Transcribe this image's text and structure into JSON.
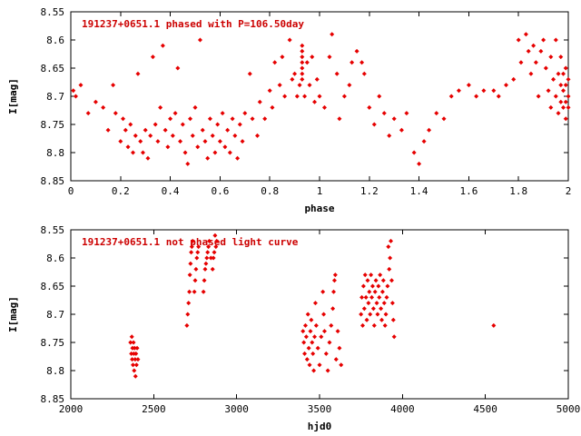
{
  "page": {
    "background": "#ffffff",
    "axis_color": "#000000"
  },
  "chart_data": [
    {
      "type": "scatter",
      "title": "191237+0651.1 phased with P=106.50day",
      "title_color": "#cc0000",
      "xlabel": "phase",
      "ylabel": "I[mag]",
      "xlim": [
        0,
        2
      ],
      "ylim": [
        8.85,
        8.55
      ],
      "y_axis_inverted": true,
      "grid": false,
      "legend": "none",
      "marker": "diamond",
      "marker_color": "#e60000",
      "xticks": {
        "values": [
          0,
          0.2,
          0.4,
          0.6,
          0.8,
          1,
          1.2,
          1.4,
          1.6,
          1.8,
          2
        ],
        "labels": [
          "0",
          "0.2",
          "0.4",
          "0.6",
          "0.8",
          "1",
          "1.2",
          "1.4",
          "1.6",
          "1.8",
          "2"
        ]
      },
      "yticks": {
        "values": [
          8.55,
          8.6,
          8.65,
          8.7,
          8.75,
          8.8,
          8.85
        ],
        "labels": [
          "8.55",
          "8.6",
          "8.65",
          "8.7",
          "8.75",
          "8.8",
          "8.85"
        ]
      },
      "points": [
        [
          0.01,
          8.69
        ],
        [
          0.02,
          8.7
        ],
        [
          0.04,
          8.68
        ],
        [
          0.07,
          8.73
        ],
        [
          0.1,
          8.71
        ],
        [
          0.13,
          8.72
        ],
        [
          0.15,
          8.76
        ],
        [
          0.17,
          8.68
        ],
        [
          0.18,
          8.73
        ],
        [
          0.2,
          8.78
        ],
        [
          0.21,
          8.74
        ],
        [
          0.22,
          8.76
        ],
        [
          0.23,
          8.79
        ],
        [
          0.24,
          8.75
        ],
        [
          0.25,
          8.8
        ],
        [
          0.26,
          8.77
        ],
        [
          0.27,
          8.66
        ],
        [
          0.28,
          8.78
        ],
        [
          0.29,
          8.8
        ],
        [
          0.3,
          8.76
        ],
        [
          0.31,
          8.81
        ],
        [
          0.32,
          8.77
        ],
        [
          0.33,
          8.63
        ],
        [
          0.34,
          8.75
        ],
        [
          0.35,
          8.78
        ],
        [
          0.36,
          8.72
        ],
        [
          0.37,
          8.61
        ],
        [
          0.38,
          8.76
        ],
        [
          0.39,
          8.79
        ],
        [
          0.4,
          8.74
        ],
        [
          0.41,
          8.77
        ],
        [
          0.42,
          8.73
        ],
        [
          0.43,
          8.65
        ],
        [
          0.44,
          8.78
        ],
        [
          0.45,
          8.75
        ],
        [
          0.46,
          8.8
        ],
        [
          0.47,
          8.82
        ],
        [
          0.48,
          8.74
        ],
        [
          0.49,
          8.77
        ],
        [
          0.5,
          8.72
        ],
        [
          0.51,
          8.79
        ],
        [
          0.52,
          8.6
        ],
        [
          0.53,
          8.76
        ],
        [
          0.54,
          8.78
        ],
        [
          0.55,
          8.81
        ],
        [
          0.56,
          8.74
        ],
        [
          0.57,
          8.77
        ],
        [
          0.58,
          8.8
        ],
        [
          0.59,
          8.75
        ],
        [
          0.6,
          8.78
        ],
        [
          0.61,
          8.73
        ],
        [
          0.62,
          8.79
        ],
        [
          0.63,
          8.76
        ],
        [
          0.64,
          8.8
        ],
        [
          0.65,
          8.74
        ],
        [
          0.66,
          8.77
        ],
        [
          0.67,
          8.81
        ],
        [
          0.68,
          8.75
        ],
        [
          0.69,
          8.78
        ],
        [
          0.7,
          8.73
        ],
        [
          0.72,
          8.66
        ],
        [
          0.73,
          8.74
        ],
        [
          0.75,
          8.77
        ],
        [
          0.76,
          8.71
        ],
        [
          0.78,
          8.74
        ],
        [
          0.8,
          8.69
        ],
        [
          0.81,
          8.72
        ],
        [
          0.82,
          8.64
        ],
        [
          0.84,
          8.68
        ],
        [
          0.85,
          8.63
        ],
        [
          0.86,
          8.7
        ],
        [
          0.88,
          8.6
        ],
        [
          0.89,
          8.67
        ],
        [
          0.9,
          8.66
        ],
        [
          0.91,
          8.7
        ],
        [
          0.92,
          8.68
        ],
        [
          0.93,
          8.61
        ],
        [
          0.93,
          8.62
        ],
        [
          0.93,
          8.63
        ],
        [
          0.93,
          8.64
        ],
        [
          0.93,
          8.65
        ],
        [
          0.93,
          8.66
        ],
        [
          0.93,
          8.67
        ],
        [
          0.94,
          8.7
        ],
        [
          0.95,
          8.64
        ],
        [
          0.96,
          8.68
        ],
        [
          0.97,
          8.63
        ],
        [
          0.98,
          8.71
        ],
        [
          0.99,
          8.67
        ],
        [
          1.0,
          8.7
        ],
        [
          1.02,
          8.72
        ],
        [
          1.04,
          8.63
        ],
        [
          1.05,
          8.59
        ],
        [
          1.07,
          8.66
        ],
        [
          1.08,
          8.74
        ],
        [
          1.1,
          8.7
        ],
        [
          1.12,
          8.68
        ],
        [
          1.13,
          8.64
        ],
        [
          1.15,
          8.62
        ],
        [
          1.17,
          8.64
        ],
        [
          1.18,
          8.66
        ],
        [
          1.2,
          8.72
        ],
        [
          1.22,
          8.75
        ],
        [
          1.24,
          8.7
        ],
        [
          1.26,
          8.73
        ],
        [
          1.28,
          8.77
        ],
        [
          1.3,
          8.74
        ],
        [
          1.33,
          8.76
        ],
        [
          1.35,
          8.73
        ],
        [
          1.38,
          8.8
        ],
        [
          1.4,
          8.82
        ],
        [
          1.42,
          8.78
        ],
        [
          1.44,
          8.76
        ],
        [
          1.47,
          8.73
        ],
        [
          1.5,
          8.74
        ],
        [
          1.53,
          8.7
        ],
        [
          1.56,
          8.69
        ],
        [
          1.6,
          8.68
        ],
        [
          1.63,
          8.7
        ],
        [
          1.66,
          8.69
        ],
        [
          1.7,
          8.69
        ],
        [
          1.72,
          8.7
        ],
        [
          1.75,
          8.68
        ],
        [
          1.78,
          8.67
        ],
        [
          1.8,
          8.6
        ],
        [
          1.81,
          8.64
        ],
        [
          1.83,
          8.59
        ],
        [
          1.84,
          8.62
        ],
        [
          1.85,
          8.66
        ],
        [
          1.86,
          8.61
        ],
        [
          1.87,
          8.64
        ],
        [
          1.88,
          8.7
        ],
        [
          1.89,
          8.62
        ],
        [
          1.9,
          8.6
        ],
        [
          1.91,
          8.65
        ],
        [
          1.92,
          8.69
        ],
        [
          1.93,
          8.63
        ],
        [
          1.93,
          8.72
        ],
        [
          1.94,
          8.67
        ],
        [
          1.95,
          8.6
        ],
        [
          1.95,
          8.7
        ],
        [
          1.96,
          8.66
        ],
        [
          1.96,
          8.73
        ],
        [
          1.97,
          8.63
        ],
        [
          1.97,
          8.68
        ],
        [
          1.97,
          8.71
        ],
        [
          1.98,
          8.66
        ],
        [
          1.98,
          8.69
        ],
        [
          1.98,
          8.72
        ],
        [
          1.99,
          8.65
        ],
        [
          1.99,
          8.68
        ],
        [
          1.99,
          8.71
        ],
        [
          1.99,
          8.74
        ],
        [
          2.0,
          8.67
        ],
        [
          2.0,
          8.7
        ],
        [
          2.0,
          8.72
        ]
      ]
    },
    {
      "type": "scatter",
      "title": "191237+0651.1 not phased light curve",
      "title_color": "#cc0000",
      "xlabel": "hjd0",
      "ylabel": "I[mag]",
      "xlim": [
        2000,
        5000
      ],
      "ylim": [
        8.85,
        8.55
      ],
      "y_axis_inverted": true,
      "grid": false,
      "legend": "none",
      "marker": "diamond",
      "marker_color": "#e60000",
      "xticks": {
        "values": [
          2000,
          2500,
          3000,
          3500,
          4000,
          4500,
          5000
        ],
        "labels": [
          "2000",
          "2500",
          "3000",
          "3500",
          "4000",
          "4500",
          "5000"
        ]
      },
      "yticks": {
        "values": [
          8.55,
          8.6,
          8.65,
          8.7,
          8.75,
          8.8,
          8.85
        ],
        "labels": [
          "8.55",
          "8.6",
          "8.65",
          "8.7",
          "8.75",
          "8.8",
          "8.85"
        ]
      },
      "points": [
        [
          2360,
          8.75
        ],
        [
          2365,
          8.77
        ],
        [
          2368,
          8.74
        ],
        [
          2370,
          8.78
        ],
        [
          2372,
          8.76
        ],
        [
          2375,
          8.79
        ],
        [
          2378,
          8.75
        ],
        [
          2380,
          8.77
        ],
        [
          2382,
          8.8
        ],
        [
          2385,
          8.76
        ],
        [
          2388,
          8.78
        ],
        [
          2390,
          8.81
        ],
        [
          2393,
          8.77
        ],
        [
          2396,
          8.79
        ],
        [
          2400,
          8.76
        ],
        [
          2405,
          8.78
        ],
        [
          2700,
          8.72
        ],
        [
          2705,
          8.7
        ],
        [
          2710,
          8.68
        ],
        [
          2715,
          8.66
        ],
        [
          2718,
          8.63
        ],
        [
          2722,
          8.61
        ],
        [
          2726,
          8.59
        ],
        [
          2730,
          8.58
        ],
        [
          2735,
          8.57
        ],
        [
          2745,
          8.66
        ],
        [
          2750,
          8.64
        ],
        [
          2755,
          8.62
        ],
        [
          2760,
          8.6
        ],
        [
          2765,
          8.59
        ],
        [
          2770,
          8.58
        ],
        [
          2800,
          8.66
        ],
        [
          2805,
          8.64
        ],
        [
          2810,
          8.62
        ],
        [
          2815,
          8.61
        ],
        [
          2820,
          8.6
        ],
        [
          2825,
          8.59
        ],
        [
          2830,
          8.58
        ],
        [
          2835,
          8.57
        ],
        [
          2845,
          8.6
        ],
        [
          2855,
          8.62
        ],
        [
          2860,
          8.6
        ],
        [
          2865,
          8.59
        ],
        [
          2870,
          8.56
        ],
        [
          2875,
          8.58
        ],
        [
          2880,
          8.57
        ],
        [
          3400,
          8.73
        ],
        [
          3405,
          8.75
        ],
        [
          3410,
          8.77
        ],
        [
          3415,
          8.72
        ],
        [
          3420,
          8.74
        ],
        [
          3425,
          8.78
        ],
        [
          3430,
          8.7
        ],
        [
          3435,
          8.76
        ],
        [
          3440,
          8.79
        ],
        [
          3445,
          8.73
        ],
        [
          3450,
          8.71
        ],
        [
          3455,
          8.75
        ],
        [
          3460,
          8.77
        ],
        [
          3465,
          8.8
        ],
        [
          3470,
          8.74
        ],
        [
          3475,
          8.68
        ],
        [
          3480,
          8.72
        ],
        [
          3490,
          8.76
        ],
        [
          3500,
          8.79
        ],
        [
          3510,
          8.74
        ],
        [
          3520,
          8.66
        ],
        [
          3525,
          8.7
        ],
        [
          3530,
          8.73
        ],
        [
          3540,
          8.77
        ],
        [
          3550,
          8.8
        ],
        [
          3560,
          8.75
        ],
        [
          3570,
          8.72
        ],
        [
          3580,
          8.69
        ],
        [
          3585,
          8.66
        ],
        [
          3590,
          8.64
        ],
        [
          3595,
          8.63
        ],
        [
          3600,
          8.78
        ],
        [
          3610,
          8.73
        ],
        [
          3620,
          8.76
        ],
        [
          3630,
          8.79
        ],
        [
          3750,
          8.7
        ],
        [
          3755,
          8.67
        ],
        [
          3760,
          8.72
        ],
        [
          3765,
          8.65
        ],
        [
          3770,
          8.69
        ],
        [
          3775,
          8.63
        ],
        [
          3780,
          8.67
        ],
        [
          3785,
          8.71
        ],
        [
          3790,
          8.64
        ],
        [
          3795,
          8.68
        ],
        [
          3800,
          8.66
        ],
        [
          3805,
          8.7
        ],
        [
          3810,
          8.63
        ],
        [
          3815,
          8.67
        ],
        [
          3820,
          8.65
        ],
        [
          3825,
          8.69
        ],
        [
          3830,
          8.72
        ],
        [
          3835,
          8.66
        ],
        [
          3840,
          8.64
        ],
        [
          3845,
          8.68
        ],
        [
          3850,
          8.7
        ],
        [
          3855,
          8.65
        ],
        [
          3860,
          8.67
        ],
        [
          3865,
          8.63
        ],
        [
          3870,
          8.69
        ],
        [
          3875,
          8.71
        ],
        [
          3880,
          8.66
        ],
        [
          3885,
          8.64
        ],
        [
          3890,
          8.68
        ],
        [
          3895,
          8.72
        ],
        [
          3900,
          8.7
        ],
        [
          3905,
          8.67
        ],
        [
          3910,
          8.65
        ],
        [
          3915,
          8.58
        ],
        [
          3920,
          8.62
        ],
        [
          3925,
          8.6
        ],
        [
          3930,
          8.57
        ],
        [
          3935,
          8.64
        ],
        [
          3940,
          8.68
        ],
        [
          3945,
          8.71
        ],
        [
          3950,
          8.74
        ],
        [
          4550,
          8.72
        ]
      ]
    }
  ]
}
